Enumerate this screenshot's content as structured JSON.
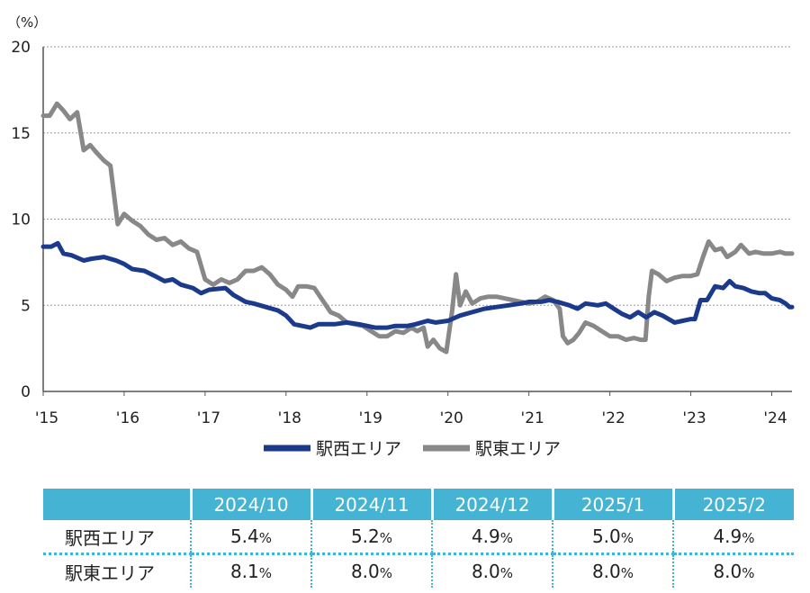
{
  "chart_data": {
    "type": "line",
    "unit_label": "（%）",
    "y_ticks": [
      "0",
      "5",
      "10",
      "15",
      "20"
    ],
    "ylim": [
      0,
      20
    ],
    "x_ticks": [
      "'15",
      "'16",
      "'17",
      "'18",
      "'19",
      "'20",
      "'21",
      "'22",
      "'23",
      "'24"
    ],
    "xlim": [
      2015.0,
      2024.25
    ],
    "grid": "horizontal dotted",
    "legend_position": "bottom",
    "series": [
      {
        "name": "駅西エリア",
        "color": "#1b3a8c",
        "points": [
          [
            2015.0,
            8.4
          ],
          [
            2015.1,
            8.4
          ],
          [
            2015.18,
            8.6
          ],
          [
            2015.25,
            8.0
          ],
          [
            2015.35,
            7.9
          ],
          [
            2015.5,
            7.6
          ],
          [
            2015.6,
            7.7
          ],
          [
            2015.75,
            7.8
          ],
          [
            2015.9,
            7.6
          ],
          [
            2016.0,
            7.4
          ],
          [
            2016.1,
            7.1
          ],
          [
            2016.25,
            7.0
          ],
          [
            2016.38,
            6.7
          ],
          [
            2016.5,
            6.4
          ],
          [
            2016.6,
            6.5
          ],
          [
            2016.7,
            6.2
          ],
          [
            2016.85,
            6.0
          ],
          [
            2016.95,
            5.7
          ],
          [
            2017.05,
            5.9
          ],
          [
            2017.25,
            6.0
          ],
          [
            2017.35,
            5.6
          ],
          [
            2017.5,
            5.2
          ],
          [
            2017.6,
            5.1
          ],
          [
            2017.75,
            4.9
          ],
          [
            2017.9,
            4.7
          ],
          [
            2018.0,
            4.4
          ],
          [
            2018.1,
            3.9
          ],
          [
            2018.3,
            3.7
          ],
          [
            2018.4,
            3.9
          ],
          [
            2018.6,
            3.9
          ],
          [
            2018.75,
            4.0
          ],
          [
            2018.9,
            3.9
          ],
          [
            2019.0,
            3.8
          ],
          [
            2019.1,
            3.7
          ],
          [
            2019.25,
            3.7
          ],
          [
            2019.35,
            3.8
          ],
          [
            2019.5,
            3.8
          ],
          [
            2019.6,
            3.9
          ],
          [
            2019.75,
            4.1
          ],
          [
            2019.85,
            4.0
          ],
          [
            2020.0,
            4.1
          ],
          [
            2020.15,
            4.4
          ],
          [
            2020.3,
            4.6
          ],
          [
            2020.45,
            4.8
          ],
          [
            2020.6,
            4.9
          ],
          [
            2020.75,
            5.0
          ],
          [
            2020.9,
            5.1
          ],
          [
            2021.0,
            5.2
          ],
          [
            2021.15,
            5.2
          ],
          [
            2021.25,
            5.3
          ],
          [
            2021.35,
            5.2
          ],
          [
            2021.5,
            5.0
          ],
          [
            2021.6,
            4.8
          ],
          [
            2021.7,
            5.1
          ],
          [
            2021.85,
            5.0
          ],
          [
            2021.95,
            5.1
          ],
          [
            2022.05,
            4.8
          ],
          [
            2022.15,
            4.5
          ],
          [
            2022.25,
            4.3
          ],
          [
            2022.35,
            4.6
          ],
          [
            2022.45,
            4.3
          ],
          [
            2022.55,
            4.6
          ],
          [
            2022.65,
            4.4
          ],
          [
            2022.8,
            4.0
          ],
          [
            2022.9,
            4.1
          ],
          [
            2023.0,
            4.2
          ],
          [
            2023.05,
            4.2
          ],
          [
            2023.12,
            5.3
          ],
          [
            2023.2,
            5.3
          ],
          [
            2023.3,
            6.1
          ],
          [
            2023.4,
            6.0
          ],
          [
            2023.48,
            6.4
          ],
          [
            2023.55,
            6.1
          ],
          [
            2023.65,
            6.0
          ],
          [
            2023.75,
            5.8
          ],
          [
            2023.85,
            5.7
          ],
          [
            2023.92,
            5.7
          ],
          [
            2024.0,
            5.4
          ],
          [
            2024.1,
            5.3
          ],
          [
            2024.17,
            5.1
          ],
          [
            2024.22,
            4.9
          ],
          [
            2024.25,
            4.9
          ]
        ]
      },
      {
        "name": "駅東エリア",
        "color": "#888888",
        "points": [
          [
            2015.0,
            16.0
          ],
          [
            2015.08,
            16.0
          ],
          [
            2015.17,
            16.7
          ],
          [
            2015.25,
            16.3
          ],
          [
            2015.33,
            15.8
          ],
          [
            2015.42,
            16.2
          ],
          [
            2015.5,
            14.0
          ],
          [
            2015.58,
            14.3
          ],
          [
            2015.67,
            13.8
          ],
          [
            2015.75,
            13.4
          ],
          [
            2015.83,
            13.1
          ],
          [
            2015.92,
            9.7
          ],
          [
            2016.0,
            10.3
          ],
          [
            2016.1,
            9.9
          ],
          [
            2016.2,
            9.6
          ],
          [
            2016.3,
            9.1
          ],
          [
            2016.4,
            8.8
          ],
          [
            2016.5,
            8.9
          ],
          [
            2016.6,
            8.5
          ],
          [
            2016.7,
            8.7
          ],
          [
            2016.8,
            8.3
          ],
          [
            2016.9,
            8.1
          ],
          [
            2017.0,
            6.5
          ],
          [
            2017.1,
            6.2
          ],
          [
            2017.2,
            6.5
          ],
          [
            2017.3,
            6.3
          ],
          [
            2017.4,
            6.5
          ],
          [
            2017.5,
            7.0
          ],
          [
            2017.6,
            7.0
          ],
          [
            2017.7,
            7.2
          ],
          [
            2017.8,
            6.8
          ],
          [
            2017.9,
            6.2
          ],
          [
            2018.0,
            5.9
          ],
          [
            2018.08,
            5.5
          ],
          [
            2018.15,
            6.1
          ],
          [
            2018.25,
            6.1
          ],
          [
            2018.35,
            6.0
          ],
          [
            2018.45,
            5.3
          ],
          [
            2018.55,
            4.6
          ],
          [
            2018.65,
            4.4
          ],
          [
            2018.75,
            4.0
          ],
          [
            2018.85,
            3.9
          ],
          [
            2018.95,
            3.8
          ],
          [
            2019.05,
            3.5
          ],
          [
            2019.15,
            3.2
          ],
          [
            2019.25,
            3.2
          ],
          [
            2019.35,
            3.5
          ],
          [
            2019.45,
            3.4
          ],
          [
            2019.55,
            3.7
          ],
          [
            2019.62,
            3.5
          ],
          [
            2019.7,
            3.7
          ],
          [
            2019.75,
            2.6
          ],
          [
            2019.82,
            3.0
          ],
          [
            2019.9,
            2.5
          ],
          [
            2019.98,
            2.3
          ],
          [
            2020.05,
            4.6
          ],
          [
            2020.1,
            6.8
          ],
          [
            2020.15,
            5.0
          ],
          [
            2020.22,
            5.8
          ],
          [
            2020.3,
            5.1
          ],
          [
            2020.4,
            5.4
          ],
          [
            2020.5,
            5.5
          ],
          [
            2020.6,
            5.5
          ],
          [
            2020.7,
            5.4
          ],
          [
            2020.8,
            5.3
          ],
          [
            2020.9,
            5.2
          ],
          [
            2021.0,
            5.1
          ],
          [
            2021.1,
            5.2
          ],
          [
            2021.2,
            5.5
          ],
          [
            2021.3,
            5.3
          ],
          [
            2021.38,
            4.8
          ],
          [
            2021.42,
            3.2
          ],
          [
            2021.48,
            2.8
          ],
          [
            2021.55,
            3.0
          ],
          [
            2021.62,
            3.4
          ],
          [
            2021.7,
            4.0
          ],
          [
            2021.8,
            3.8
          ],
          [
            2021.9,
            3.5
          ],
          [
            2022.0,
            3.2
          ],
          [
            2022.1,
            3.2
          ],
          [
            2022.2,
            3.0
          ],
          [
            2022.3,
            3.1
          ],
          [
            2022.38,
            3.0
          ],
          [
            2022.44,
            3.0
          ],
          [
            2022.48,
            5.5
          ],
          [
            2022.52,
            7.0
          ],
          [
            2022.6,
            6.8
          ],
          [
            2022.7,
            6.4
          ],
          [
            2022.8,
            6.6
          ],
          [
            2022.9,
            6.7
          ],
          [
            2023.0,
            6.7
          ],
          [
            2023.08,
            6.8
          ],
          [
            2023.15,
            7.8
          ],
          [
            2023.22,
            8.7
          ],
          [
            2023.3,
            8.2
          ],
          [
            2023.38,
            8.3
          ],
          [
            2023.45,
            7.8
          ],
          [
            2023.55,
            8.1
          ],
          [
            2023.62,
            8.5
          ],
          [
            2023.72,
            8.0
          ],
          [
            2023.8,
            8.1
          ],
          [
            2023.9,
            8.0
          ],
          [
            2024.0,
            8.0
          ],
          [
            2024.1,
            8.1
          ],
          [
            2024.17,
            8.0
          ],
          [
            2024.25,
            8.0
          ]
        ]
      }
    ]
  },
  "table": {
    "headers": [
      "",
      "2024/10",
      "2024/11",
      "2024/12",
      "2025/1",
      "2025/2"
    ],
    "rows": [
      {
        "label": "駅西エリア",
        "values": [
          "5.4",
          "5.2",
          "4.9",
          "5.0",
          "4.9"
        ],
        "unit": "%"
      },
      {
        "label": "駅東エリア",
        "values": [
          "8.1",
          "8.0",
          "8.0",
          "8.0",
          "8.0"
        ],
        "unit": "%"
      }
    ]
  }
}
